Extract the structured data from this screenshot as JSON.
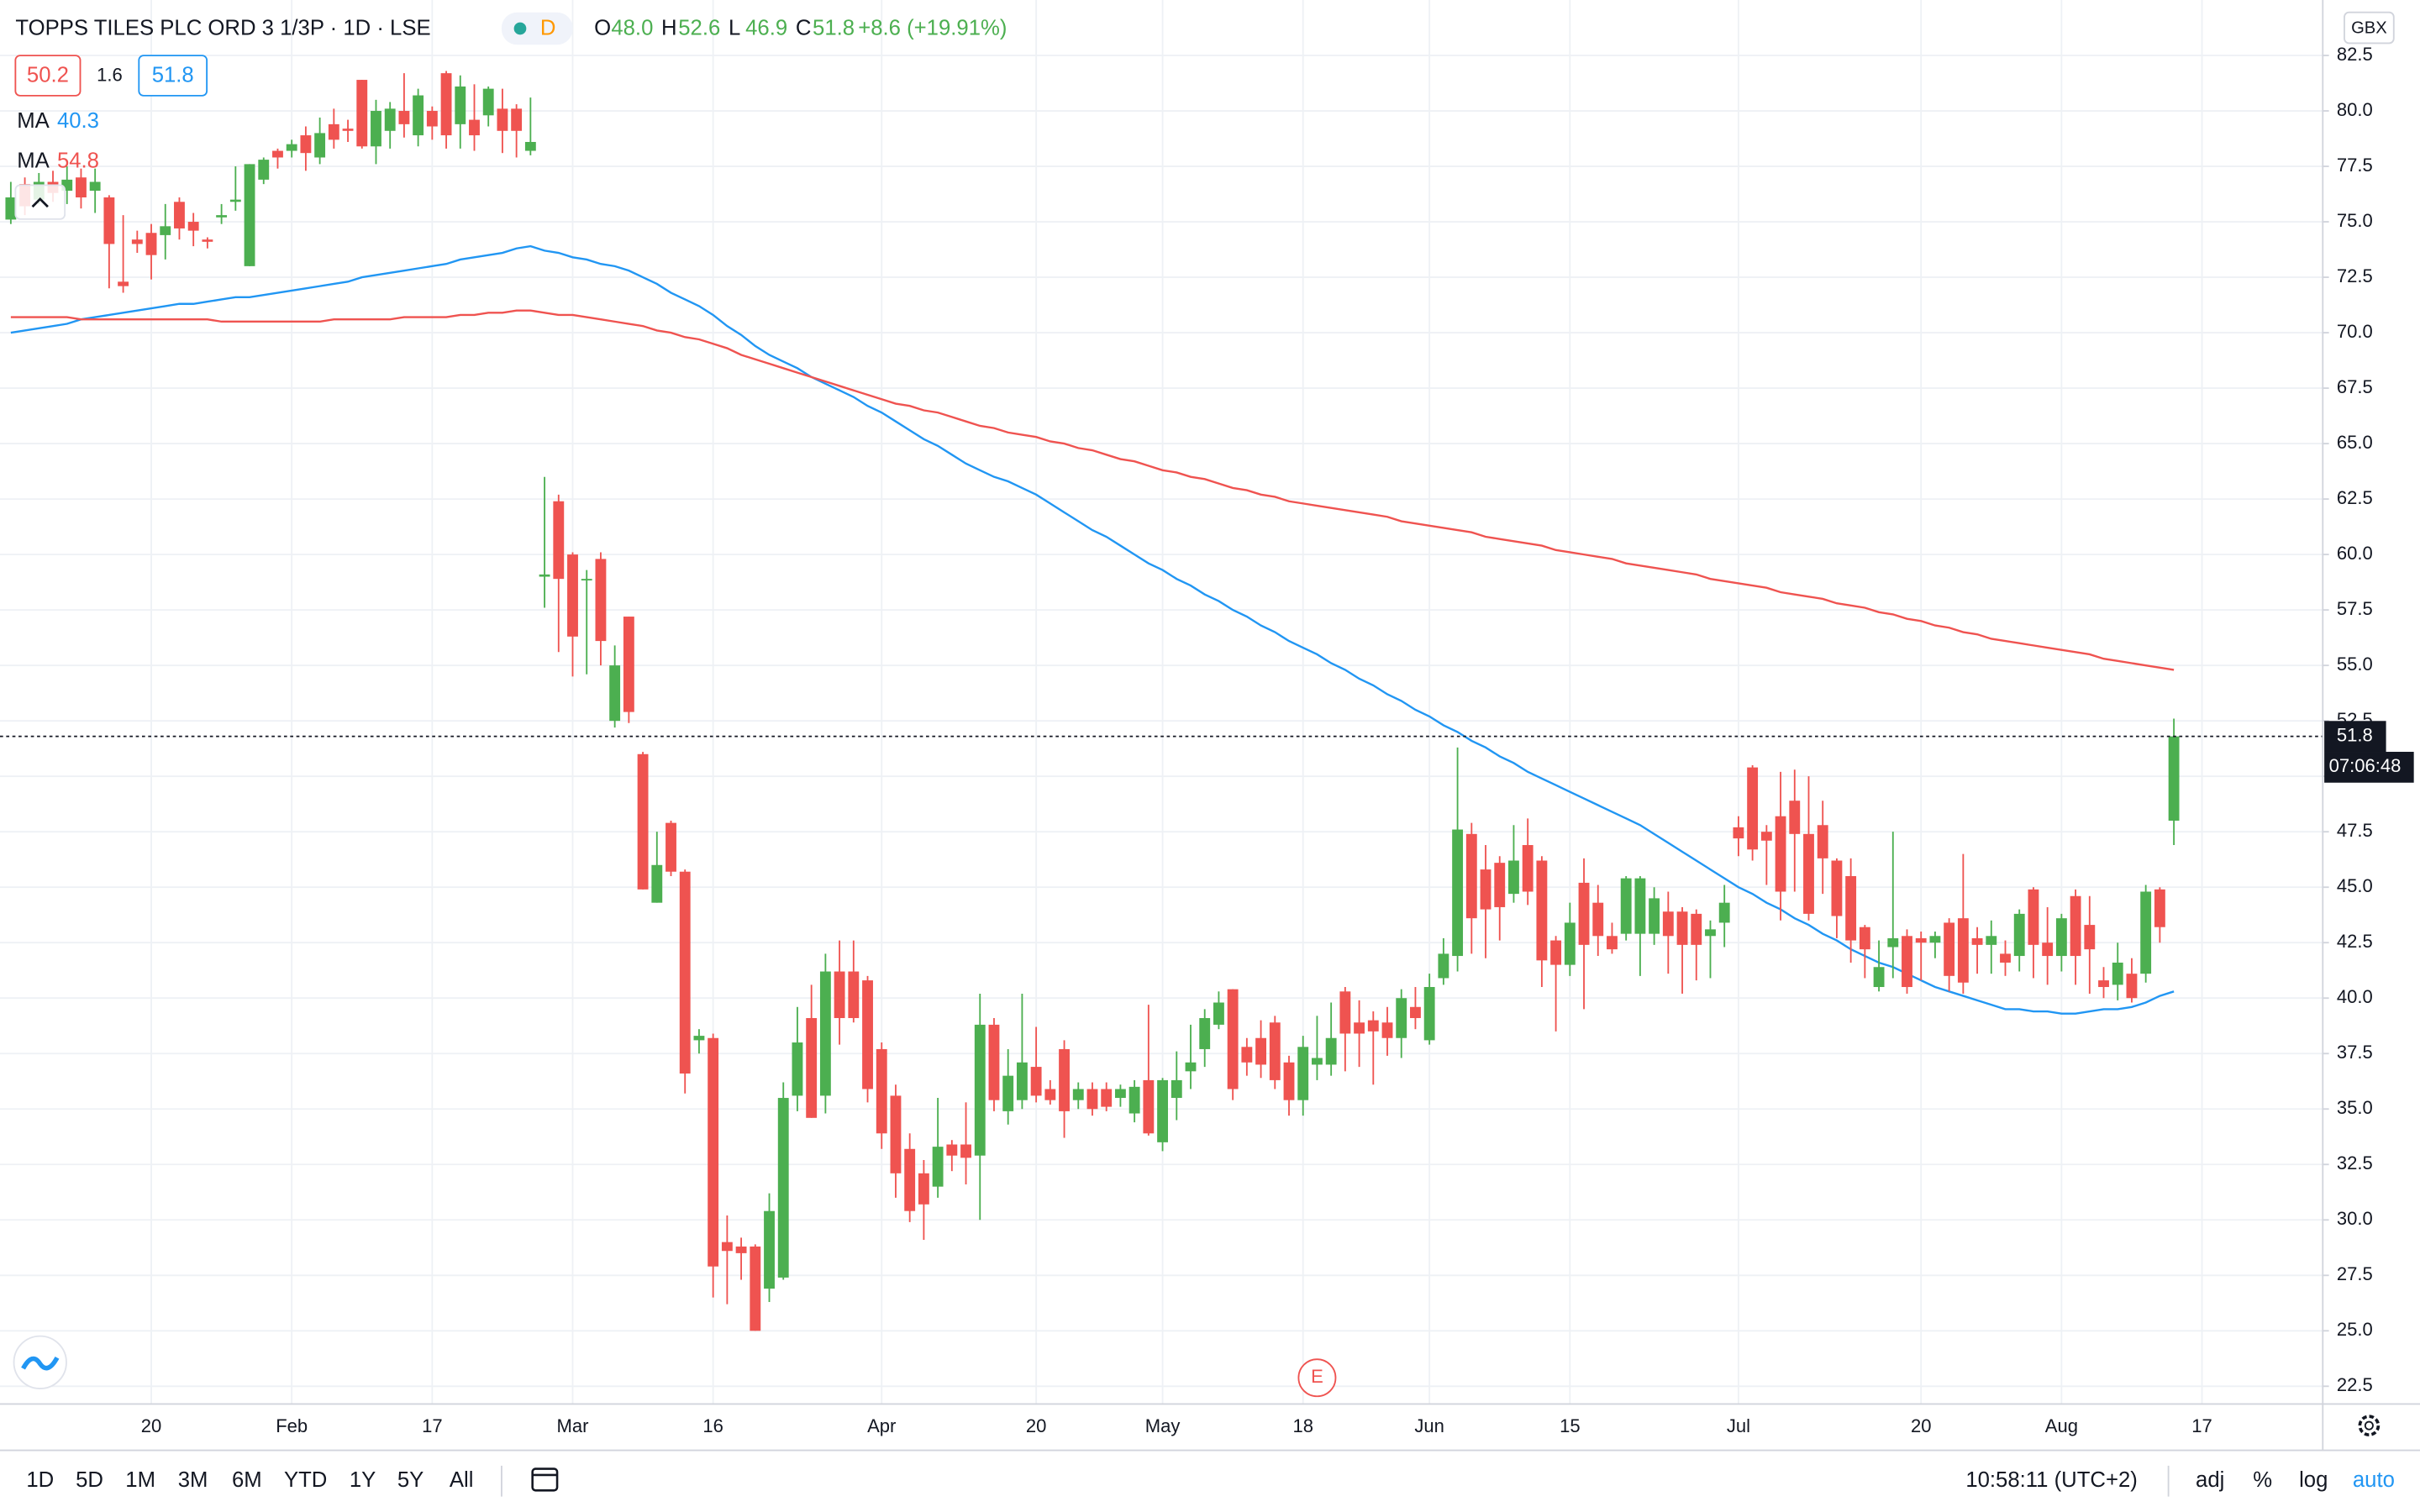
{
  "header": {
    "symbol": "TOPPS TILES PLC ORD 3 1/3P · 1D · LSE",
    "badge": "D",
    "ohlc": [
      {
        "key": "O",
        "value": "48.0"
      },
      {
        "key": "H",
        "value": "52.6"
      },
      {
        "key": "L",
        "value": "46.9"
      },
      {
        "key": "C",
        "value": "51.8"
      }
    ],
    "change": "+8.6 (+19.91%)"
  },
  "quote": {
    "bid": "50.2",
    "spread": "1.6",
    "ask": "51.8"
  },
  "toolbar": {
    "ranges": [
      "1D",
      "5D",
      "1M",
      "3M",
      "6M",
      "YTD",
      "1Y",
      "5Y",
      "All"
    ],
    "time": "10:58:11 (UTC+2)",
    "options": [
      "adj",
      "%",
      "log",
      "auto"
    ]
  },
  "chart_data": {
    "type": "candlestick",
    "currency": "GBX",
    "countdown": "07:06:48",
    "event": {
      "label": "E",
      "x": 93
    },
    "up_color": "#4caf50",
    "down_color": "#ef5350",
    "grid": true,
    "xlim": [
      -0.77,
      164.6
    ],
    "ylim": [
      21.7,
      85.0
    ],
    "xticks": [
      {
        "value": 10,
        "label": "20"
      },
      {
        "value": 20,
        "label": "Feb"
      },
      {
        "value": 30,
        "label": "17"
      },
      {
        "value": 40,
        "label": "Mar"
      },
      {
        "value": 50,
        "label": "16"
      },
      {
        "value": 62,
        "label": "Apr"
      },
      {
        "value": 73,
        "label": "20"
      },
      {
        "value": 82,
        "label": "May"
      },
      {
        "value": 92,
        "label": "18"
      },
      {
        "value": 101,
        "label": "Jun"
      },
      {
        "value": 111,
        "label": "15"
      },
      {
        "value": 123,
        "label": "Jul"
      },
      {
        "value": 136,
        "label": "20"
      },
      {
        "value": 146,
        "label": "Aug"
      },
      {
        "value": 156,
        "label": "17"
      }
    ],
    "yticks": [
      22.5,
      {
        "value": 25,
        "label": "25.0"
      },
      27.5,
      {
        "value": 30,
        "label": "30.0"
      },
      32.5,
      {
        "value": 35,
        "label": "35.0"
      },
      37.5,
      {
        "value": 40,
        "label": "40.0"
      },
      42.5,
      {
        "value": 45,
        "label": "45.0"
      },
      47.5,
      {
        "value": 50,
        "label": "50.0"
      },
      52.5,
      {
        "value": 55,
        "label": "55.0"
      },
      57.5,
      {
        "value": 60,
        "label": "60.0"
      },
      62.5,
      {
        "value": 65,
        "label": "65.0"
      },
      67.5,
      {
        "value": 70,
        "label": "70.0"
      },
      72.5,
      {
        "value": 75,
        "label": "75.0"
      },
      77.5,
      {
        "value": 80,
        "label": "80.0"
      },
      82.5
    ],
    "open": [
      75.1,
      76.7,
      76.0,
      76.8,
      76.4,
      77.0,
      76.4,
      76.1,
      72.3,
      74.2,
      74.5,
      74.4,
      75.9,
      75.0,
      74.2,
      75.2,
      75.9,
      73.0,
      76.9,
      78.2,
      78.2,
      78.9,
      77.9,
      79.4,
      79.2,
      81.4,
      78.4,
      79.1,
      80.0,
      78.9,
      80.0,
      81.7,
      79.4,
      79.6,
      79.8,
      80.1,
      80.1,
      78.2,
      59.0,
      62.4,
      60.0,
      58.9,
      59.8,
      52.5,
      57.2,
      51.0,
      44.3,
      47.9,
      45.7,
      38.1,
      38.2,
      29.0,
      28.8,
      28.8,
      26.9,
      27.4,
      35.6,
      39.1,
      35.6,
      41.2,
      41.2,
      40.8,
      37.7,
      35.6,
      33.2,
      32.1,
      31.5,
      33.4,
      33.4,
      32.9,
      38.8,
      34.9,
      35.4,
      36.9,
      35.9,
      37.7,
      35.4,
      35.9,
      35.9,
      35.5,
      34.8,
      36.3,
      33.5,
      35.5,
      36.7,
      37.7,
      38.8,
      40.4,
      37.8,
      38.2,
      38.9,
      37.1,
      35.4,
      37.0,
      37.0,
      40.3,
      38.9,
      39.0,
      38.9,
      38.2,
      39.6,
      38.1,
      40.9,
      41.9,
      47.4,
      45.8,
      46.1,
      44.7,
      46.9,
      46.2,
      42.6,
      41.5,
      45.2,
      44.3,
      42.8,
      42.9,
      42.9,
      42.9,
      43.9,
      43.9,
      43.8,
      42.8,
      43.4,
      47.7,
      50.4,
      47.5,
      48.2,
      48.9,
      47.4,
      47.8,
      46.2,
      45.5,
      43.2,
      40.5,
      42.3,
      42.8,
      42.7,
      42.5,
      43.4,
      43.6,
      42.7,
      42.4,
      42.0,
      41.9,
      44.9,
      42.5,
      41.9,
      44.6,
      43.3,
      40.8,
      40.6,
      41.1,
      41.1,
      44.9,
      48.0
    ],
    "high": [
      76.8,
      77.0,
      77.2,
      77.3,
      77.5,
      77.4,
      77.4,
      76.2,
      75.3,
      74.6,
      74.9,
      75.8,
      76.1,
      75.4,
      74.3,
      75.8,
      77.5,
      77.6,
      77.9,
      78.3,
      78.7,
      79.3,
      79.7,
      80.1,
      79.6,
      81.4,
      80.5,
      80.4,
      81.7,
      81.0,
      80.2,
      81.8,
      81.6,
      81.2,
      81.1,
      81.0,
      80.3,
      80.6,
      63.5,
      62.7,
      60.1,
      59.3,
      60.1,
      55.9,
      57.2,
      51.1,
      47.5,
      48.0,
      45.8,
      38.6,
      38.4,
      30.2,
      29.2,
      28.9,
      31.2,
      36.2,
      39.6,
      40.6,
      42.0,
      42.6,
      42.6,
      41.0,
      38.0,
      36.1,
      33.9,
      32.7,
      35.5,
      33.6,
      35.3,
      40.2,
      39.1,
      37.7,
      40.2,
      38.7,
      36.3,
      38.1,
      36.2,
      36.2,
      36.2,
      36.1,
      36.3,
      39.7,
      36.4,
      37.6,
      38.8,
      39.5,
      40.3,
      40.4,
      38.2,
      39.0,
      39.2,
      37.4,
      38.3,
      39.2,
      39.8,
      40.5,
      39.9,
      39.4,
      39.6,
      40.4,
      40.5,
      41.1,
      42.7,
      51.3,
      47.9,
      46.9,
      46.4,
      47.8,
      48.1,
      46.4,
      42.8,
      44.3,
      46.3,
      45.1,
      43.4,
      45.5,
      45.5,
      45.0,
      44.8,
      44.1,
      44.0,
      43.5,
      45.1,
      48.2,
      50.5,
      47.8,
      50.2,
      50.3,
      50.0,
      48.9,
      46.3,
      46.3,
      43.3,
      42.6,
      47.5,
      43.1,
      43.0,
      43.0,
      43.6,
      46.5,
      43.2,
      43.5,
      42.6,
      44.0,
      45.0,
      44.1,
      43.8,
      44.9,
      44.6,
      41.4,
      42.5,
      41.8,
      45.1,
      45.0,
      52.6
    ],
    "low": [
      74.9,
      75.3,
      75.8,
      75.9,
      75.8,
      75.6,
      75.4,
      72.0,
      71.8,
      73.6,
      72.4,
      73.3,
      74.2,
      73.9,
      73.8,
      74.9,
      75.5,
      73.0,
      76.7,
      77.4,
      77.9,
      77.3,
      77.6,
      78.3,
      78.6,
      78.3,
      77.6,
      78.3,
      78.8,
      78.4,
      78.7,
      78.3,
      78.3,
      78.2,
      79.3,
      78.1,
      77.9,
      78.0,
      57.6,
      55.6,
      54.5,
      54.6,
      55.0,
      52.2,
      52.4,
      44.9,
      44.3,
      45.5,
      35.7,
      37.5,
      26.5,
      26.2,
      27.3,
      25.0,
      26.3,
      27.3,
      34.9,
      34.6,
      34.8,
      37.9,
      38.9,
      35.3,
      33.2,
      31.0,
      29.9,
      29.1,
      31.0,
      32.2,
      31.6,
      30.0,
      34.9,
      34.3,
      35.0,
      35.3,
      35.2,
      33.7,
      35.0,
      34.7,
      34.9,
      35.1,
      34.4,
      33.8,
      33.1,
      34.5,
      35.9,
      36.9,
      38.6,
      35.4,
      36.5,
      36.4,
      35.9,
      34.7,
      34.7,
      36.3,
      36.5,
      36.7,
      36.9,
      36.1,
      37.4,
      37.3,
      38.6,
      37.9,
      40.6,
      41.2,
      42.0,
      41.8,
      42.6,
      44.3,
      44.2,
      40.5,
      38.5,
      41.0,
      39.5,
      41.9,
      42.0,
      42.6,
      41.0,
      42.4,
      41.1,
      40.2,
      40.8,
      40.9,
      42.3,
      46.4,
      46.2,
      45.1,
      43.5,
      44.8,
      43.5,
      44.7,
      42.7,
      41.6,
      40.9,
      40.3,
      40.9,
      40.2,
      40.8,
      41.8,
      40.3,
      40.2,
      41.1,
      41.1,
      41.0,
      41.2,
      40.9,
      40.6,
      41.2,
      40.6,
      40.2,
      40.0,
      39.9,
      39.8,
      40.7,
      42.5,
      46.9
    ],
    "close": [
      76.1,
      75.7,
      76.8,
      76.3,
      76.9,
      76.1,
      76.8,
      74.0,
      72.1,
      74.0,
      73.5,
      74.8,
      74.7,
      74.6,
      74.1,
      75.3,
      76.0,
      77.6,
      77.8,
      77.9,
      78.5,
      78.1,
      79.0,
      78.7,
      79.1,
      78.4,
      80.0,
      80.1,
      79.4,
      80.7,
      79.3,
      78.9,
      81.1,
      78.9,
      81.0,
      79.1,
      79.1,
      78.6,
      59.1,
      58.9,
      56.3,
      58.9,
      56.1,
      55.0,
      52.9,
      44.9,
      46.0,
      45.7,
      36.6,
      38.3,
      27.9,
      28.6,
      28.5,
      25.0,
      30.4,
      35.5,
      38.0,
      34.6,
      41.2,
      39.1,
      39.1,
      35.9,
      33.9,
      32.1,
      30.4,
      30.7,
      33.3,
      32.9,
      32.8,
      38.8,
      35.4,
      36.5,
      37.1,
      35.6,
      35.4,
      34.9,
      35.9,
      35.0,
      35.1,
      35.9,
      36.0,
      33.9,
      36.3,
      36.3,
      37.1,
      39.1,
      39.8,
      35.9,
      37.1,
      37.0,
      36.3,
      35.4,
      37.8,
      37.3,
      38.2,
      38.4,
      38.4,
      38.5,
      38.2,
      40.0,
      39.1,
      40.5,
      42.0,
      47.6,
      43.6,
      44.0,
      44.1,
      46.2,
      44.8,
      41.7,
      41.5,
      43.4,
      42.4,
      42.8,
      42.2,
      45.4,
      45.4,
      44.5,
      42.8,
      42.4,
      42.4,
      43.1,
      44.3,
      47.2,
      46.7,
      47.1,
      44.8,
      47.4,
      43.8,
      46.3,
      43.7,
      42.6,
      42.2,
      41.4,
      42.7,
      40.5,
      42.5,
      42.8,
      41.0,
      40.7,
      42.4,
      42.8,
      41.6,
      43.8,
      42.4,
      41.9,
      43.6,
      41.9,
      42.2,
      40.5,
      41.6,
      40.0,
      44.8,
      43.2,
      51.8
    ],
    "series": [
      {
        "name": "MA",
        "color": "#2196f3",
        "values": [
          70.0,
          70.1,
          70.2,
          70.3,
          70.4,
          70.6,
          70.7,
          70.8,
          70.9,
          71.0,
          71.1,
          71.2,
          71.3,
          71.3,
          71.4,
          71.5,
          71.6,
          71.6,
          71.7,
          71.8,
          71.9,
          72.0,
          72.1,
          72.2,
          72.3,
          72.5,
          72.6,
          72.7,
          72.8,
          72.9,
          73.0,
          73.1,
          73.3,
          73.4,
          73.5,
          73.6,
          73.8,
          73.9,
          73.7,
          73.6,
          73.4,
          73.3,
          73.1,
          73.0,
          72.8,
          72.5,
          72.2,
          71.8,
          71.5,
          71.2,
          70.8,
          70.3,
          69.9,
          69.4,
          69.0,
          68.7,
          68.4,
          68.0,
          67.7,
          67.4,
          67.1,
          66.7,
          66.4,
          66.0,
          65.6,
          65.2,
          64.9,
          64.5,
          64.1,
          63.8,
          63.5,
          63.3,
          63.0,
          62.7,
          62.3,
          61.9,
          61.5,
          61.1,
          60.8,
          60.4,
          60.0,
          59.6,
          59.3,
          58.9,
          58.6,
          58.2,
          57.9,
          57.5,
          57.2,
          56.8,
          56.5,
          56.1,
          55.8,
          55.5,
          55.1,
          54.8,
          54.4,
          54.1,
          53.7,
          53.4,
          53.0,
          52.7,
          52.3,
          52.0,
          51.6,
          51.3,
          50.9,
          50.6,
          50.2,
          49.9,
          49.6,
          49.3,
          49.0,
          48.7,
          48.4,
          48.1,
          47.8,
          47.4,
          47.0,
          46.6,
          46.2,
          45.8,
          45.4,
          45.0,
          44.7,
          44.3,
          44.0,
          43.6,
          43.3,
          42.9,
          42.6,
          42.2,
          41.9,
          41.6,
          41.4,
          41.1,
          40.8,
          40.5,
          40.3,
          40.1,
          39.9,
          39.7,
          39.5,
          39.5,
          39.4,
          39.4,
          39.3,
          39.3,
          39.4,
          39.5,
          39.5,
          39.6,
          39.8,
          40.1,
          40.3
        ]
      },
      {
        "name": "MA",
        "color": "#ef5350",
        "values": [
          70.7,
          70.7,
          70.7,
          70.7,
          70.7,
          70.6,
          70.6,
          70.6,
          70.6,
          70.6,
          70.6,
          70.6,
          70.6,
          70.6,
          70.6,
          70.5,
          70.5,
          70.5,
          70.5,
          70.5,
          70.5,
          70.5,
          70.5,
          70.6,
          70.6,
          70.6,
          70.6,
          70.6,
          70.7,
          70.7,
          70.7,
          70.7,
          70.8,
          70.8,
          70.9,
          70.9,
          71.0,
          71.0,
          70.9,
          70.8,
          70.8,
          70.7,
          70.6,
          70.5,
          70.4,
          70.3,
          70.1,
          70.0,
          69.8,
          69.7,
          69.5,
          69.3,
          69.0,
          68.8,
          68.6,
          68.4,
          68.2,
          68.0,
          67.8,
          67.6,
          67.4,
          67.2,
          67.0,
          66.8,
          66.7,
          66.5,
          66.4,
          66.2,
          66.0,
          65.8,
          65.7,
          65.5,
          65.4,
          65.3,
          65.1,
          65.0,
          64.8,
          64.7,
          64.5,
          64.3,
          64.2,
          64.0,
          63.8,
          63.7,
          63.5,
          63.4,
          63.2,
          63.0,
          62.9,
          62.7,
          62.6,
          62.4,
          62.3,
          62.2,
          62.1,
          62.0,
          61.9,
          61.8,
          61.7,
          61.5,
          61.4,
          61.3,
          61.2,
          61.1,
          61.0,
          60.8,
          60.7,
          60.6,
          60.5,
          60.4,
          60.2,
          60.1,
          60.0,
          59.9,
          59.8,
          59.6,
          59.5,
          59.4,
          59.3,
          59.2,
          59.1,
          58.9,
          58.8,
          58.7,
          58.6,
          58.5,
          58.3,
          58.2,
          58.1,
          58.0,
          57.8,
          57.7,
          57.6,
          57.4,
          57.3,
          57.1,
          57.0,
          56.8,
          56.7,
          56.5,
          56.4,
          56.2,
          56.1,
          56.0,
          55.9,
          55.8,
          55.7,
          55.6,
          55.5,
          55.3,
          55.2,
          55.1,
          55.0,
          54.9,
          54.8
        ]
      }
    ]
  }
}
